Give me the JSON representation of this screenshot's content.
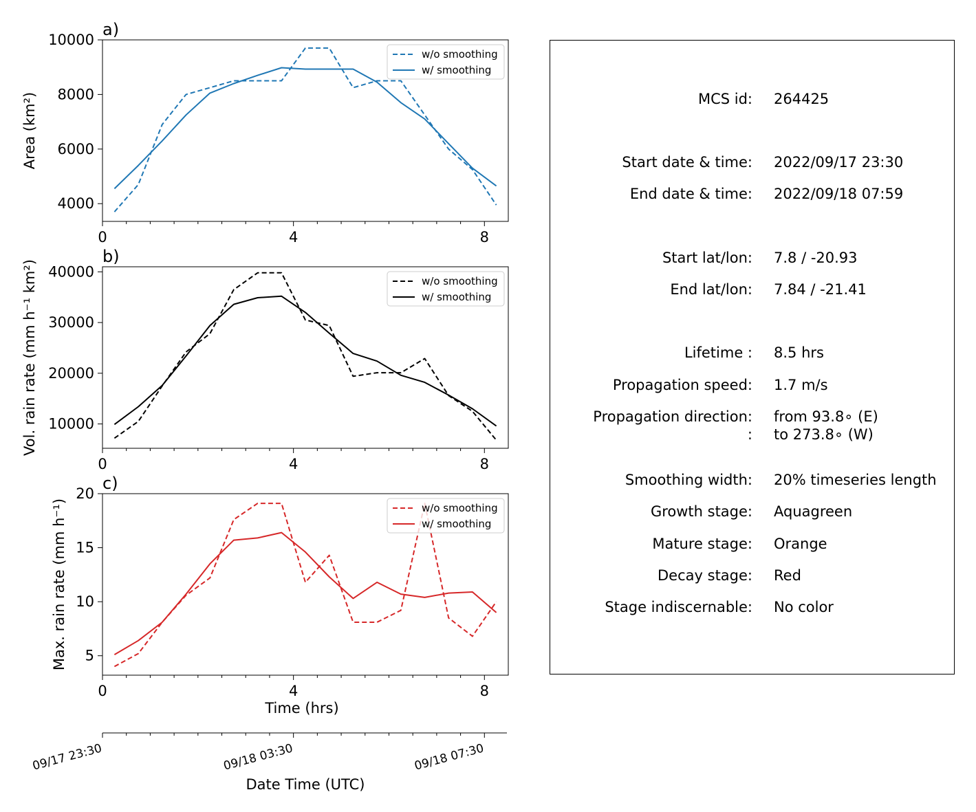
{
  "chart_data": [
    {
      "type": "line",
      "panel_label": "a)",
      "ylabel": "Area  (km²)",
      "color": "#1f77b4",
      "xlim": [
        0,
        8.5
      ],
      "ylim": [
        3350,
        10000
      ],
      "xticks": [
        0,
        4,
        8
      ],
      "yticks": [
        4000,
        6000,
        8000,
        10000
      ],
      "legend_position": "top-right",
      "x": [
        0.25,
        0.75,
        1.25,
        1.75,
        2.25,
        2.75,
        3.25,
        3.75,
        4.25,
        4.75,
        5.25,
        5.75,
        6.25,
        6.75,
        7.25,
        7.75,
        8.25
      ],
      "series": [
        {
          "name": "w/o smoothing",
          "style": "dashed",
          "values": [
            3700,
            4700,
            6900,
            8000,
            8250,
            8500,
            8500,
            8500,
            9700,
            9700,
            8250,
            8500,
            8500,
            7250,
            6000,
            5250,
            3950
          ]
        },
        {
          "name": "w/ smoothing",
          "style": "solid",
          "values": [
            4550,
            5400,
            6300,
            7250,
            8050,
            8400,
            8700,
            8980,
            8930,
            8930,
            8930,
            8450,
            7700,
            7100,
            6200,
            5300,
            4650
          ]
        }
      ]
    },
    {
      "type": "line",
      "panel_label": "b)",
      "ylabel": "Vol. rain rate (mm h⁻¹ km²)",
      "color": "#000000",
      "xlim": [
        0,
        8.5
      ],
      "ylim": [
        5200,
        41000
      ],
      "xticks": [
        0,
        4,
        8
      ],
      "yticks": [
        10000,
        20000,
        30000,
        40000
      ],
      "legend_position": "top-right",
      "x": [
        0.25,
        0.75,
        1.25,
        1.75,
        2.25,
        2.75,
        3.25,
        3.75,
        4.25,
        4.75,
        5.25,
        5.75,
        6.25,
        6.75,
        7.25,
        7.75,
        8.25
      ],
      "series": [
        {
          "name": "w/o smoothing",
          "style": "dashed",
          "values": [
            7200,
            10500,
            17500,
            24200,
            27800,
            36500,
            39800,
            39800,
            30500,
            29400,
            19400,
            20100,
            20100,
            22900,
            15600,
            12500,
            6800
          ]
        },
        {
          "name": "w/ smoothing",
          "style": "solid",
          "values": [
            9900,
            13400,
            17600,
            23400,
            29400,
            33600,
            34900,
            35200,
            32000,
            27900,
            23900,
            22400,
            19600,
            18200,
            15700,
            13000,
            9600
          ]
        }
      ]
    },
    {
      "type": "line",
      "panel_label": "c)",
      "ylabel": "Max. rain rate  (mm h⁻¹)",
      "color": "#d62728",
      "xlim": [
        0,
        8.5
      ],
      "ylim": [
        3.2,
        20
      ],
      "xticks": [
        0,
        4,
        8
      ],
      "yticks": [
        5,
        10,
        15,
        20
      ],
      "xlabel": "Time (hrs)",
      "legend_position": "top-right",
      "x": [
        0.25,
        0.75,
        1.25,
        1.75,
        2.25,
        2.75,
        3.25,
        3.75,
        4.25,
        4.75,
        5.25,
        5.75,
        6.25,
        6.75,
        7.25,
        7.75,
        8.25
      ],
      "series": [
        {
          "name": "w/o smoothing",
          "style": "dashed",
          "values": [
            4.0,
            5.2,
            8.1,
            10.6,
            12.2,
            17.6,
            19.1,
            19.1,
            11.8,
            14.3,
            8.1,
            8.1,
            9.2,
            19.1,
            8.5,
            6.8,
            10.0
          ]
        },
        {
          "name": "w/ smoothing",
          "style": "solid",
          "values": [
            5.1,
            6.4,
            8.1,
            10.7,
            13.5,
            15.7,
            15.9,
            16.4,
            14.6,
            12.3,
            10.3,
            11.8,
            10.7,
            10.4,
            10.8,
            10.9,
            9.0
          ]
        }
      ]
    }
  ],
  "datetime_axis": {
    "label": "Date Time (UTC)",
    "tick_labels": [
      {
        "hours": 0,
        "text": "09/17 23:30"
      },
      {
        "hours": 4,
        "text": "09/18 03:30"
      },
      {
        "hours": 8,
        "text": "09/18 07:30"
      }
    ]
  },
  "info": {
    "rows": [
      {
        "label": "MCS id:",
        "value": "264425"
      },
      {
        "label": "Start date & time:",
        "value": "2022/09/17 23:30"
      },
      {
        "label": "End date & time:",
        "value": "2022/09/18 07:59"
      },
      {
        "label": "Start lat/lon:",
        "value": "7.8 / -20.93"
      },
      {
        "label": "End lat/lon:",
        "value": "7.84 / -21.41"
      },
      {
        "label": "Lifetime :",
        "value": "8.5 hrs"
      },
      {
        "label": "Propagation speed:",
        "value": "1.7 m/s"
      },
      {
        "label": "Propagation direction:",
        "value": "from  93.8∘ (E)"
      },
      {
        "label": ":",
        "value": "to   273.8∘ (W)"
      },
      {
        "label": "Smoothing width:",
        "value": "20% timeseries length"
      },
      {
        "label": "Growth stage:",
        "value": "Aquagreen"
      },
      {
        "label": "Mature stage:",
        "value": "Orange"
      },
      {
        "label": "Decay stage:",
        "value": "Red"
      },
      {
        "label": "Stage indiscernable:",
        "value": "No color"
      }
    ]
  }
}
